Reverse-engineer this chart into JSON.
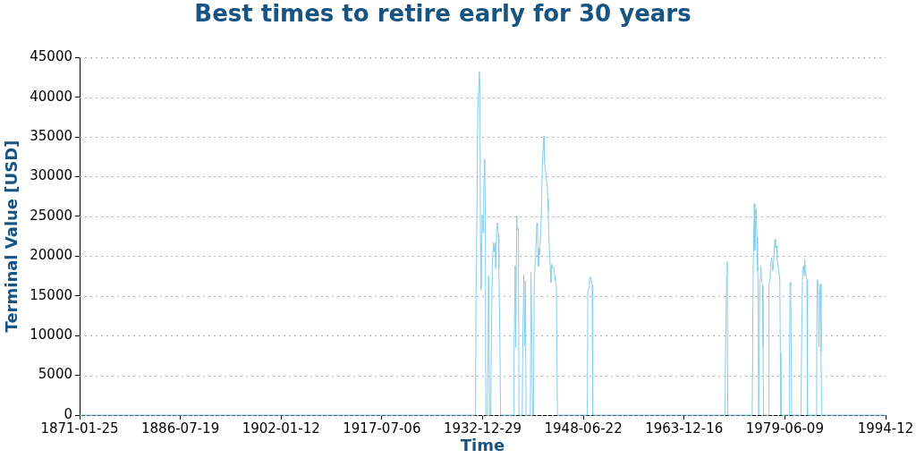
{
  "chart_data": {
    "type": "line",
    "title": "Best times to retire early for 30 years",
    "xlabel": "Time",
    "ylabel": "Terminal Value [USD]",
    "x": [
      "1871-02",
      "1931-12",
      "1932-01",
      "1932-02",
      "1932-04",
      "1932-07",
      "1932-08",
      "1932-09",
      "1932-10",
      "1932-11",
      "1932-12",
      "1933-02",
      "1933-03",
      "1933-05",
      "1933-06",
      "1933-07",
      "1933-10",
      "1933-11",
      "1933-12",
      "1934-02",
      "1934-04",
      "1934-05",
      "1934-07",
      "1934-09",
      "1934-10",
      "1934-12",
      "1935-01",
      "1935-03",
      "1935-04",
      "1935-06",
      "1935-07",
      "1935-09",
      "1935-10",
      "1937-10",
      "1937-11",
      "1938-01",
      "1938-02",
      "1938-04",
      "1938-05",
      "1938-07",
      "1938-08",
      "1939-02",
      "1939-03",
      "1939-05",
      "1939-07",
      "1939-08",
      "1939-09",
      "1940-05",
      "1940-06",
      "1940-08",
      "1940-09",
      "1940-11",
      "1940-12",
      "1941-02",
      "1941-03",
      "1941-05",
      "1941-06",
      "1941-07",
      "1941-08",
      "1941-09",
      "1941-10",
      "1941-12",
      "1942-02",
      "1942-03",
      "1942-05",
      "1942-06",
      "1942-07",
      "1942-09",
      "1942-10",
      "1942-12",
      "1943-01",
      "1943-02",
      "1943-03",
      "1943-05",
      "1943-06",
      "1943-07",
      "1943-08",
      "1943-10",
      "1943-12",
      "1944-02",
      "1944-03",
      "1944-05",
      "1944-06",
      "1944-07",
      "1949-02",
      "1949-03",
      "1949-05",
      "1949-06",
      "1949-08",
      "1949-10",
      "1949-11",
      "1949-12",
      "1970-04",
      "1970-05",
      "1970-07",
      "1970-08",
      "1970-09",
      "1974-06",
      "1974-07",
      "1974-08",
      "1974-10",
      "1974-11",
      "1974-12",
      "1975-01",
      "1975-03",
      "1975-04",
      "1975-05",
      "1975-06",
      "1975-07",
      "1975-08",
      "1975-09",
      "1975-10",
      "1975-11",
      "1976-01",
      "1976-02",
      "1976-03",
      "1976-12",
      "1977-01",
      "1977-03",
      "1977-04",
      "1977-06",
      "1977-08",
      "1977-09",
      "1977-10",
      "1977-12",
      "1978-01",
      "1978-03",
      "1978-04",
      "1978-05",
      "1978-07",
      "1978-09",
      "1978-10",
      "1978-11",
      "1980-02",
      "1980-03",
      "1980-04",
      "1980-05",
      "1980-06",
      "1980-07",
      "1981-12",
      "1982-01",
      "1982-03",
      "1982-05",
      "1982-06",
      "1982-07",
      "1982-08",
      "1982-10",
      "1982-11",
      "1982-12",
      "1984-04",
      "1984-05",
      "1984-06",
      "1984-08",
      "1984-09",
      "1984-11",
      "1984-12",
      "1985-01",
      "1985-02",
      "1994-11"
    ],
    "series": [
      {
        "color": "#87ceeb",
        "values": [
          0,
          0,
          19400,
          22000,
          38000,
          43200,
          41500,
          21500,
          15800,
          23200,
          25200,
          22900,
          28200,
          32200,
          24600,
          0,
          0,
          8800,
          17500,
          0,
          0,
          8400,
          19200,
          21700,
          20500,
          21700,
          18400,
          23600,
          24200,
          22700,
          18400,
          8300,
          0,
          0,
          8300,
          18800,
          8500,
          25100,
          23300,
          23500,
          0,
          0,
          8500,
          17700,
          8700,
          16900,
          0,
          0,
          18000,
          9000,
          0,
          0,
          16400,
          19700,
          20300,
          24200,
          23600,
          21000,
          18700,
          20900,
          20200,
          22700,
          27400,
          31200,
          34000,
          35100,
          32000,
          30700,
          29800,
          29000,
          27200,
          25600,
          22600,
          19600,
          18300,
          16700,
          19000,
          18500,
          18600,
          17500,
          17000,
          16300,
          7800,
          0,
          0,
          15600,
          16000,
          17000,
          17400,
          16600,
          16400,
          0,
          0,
          8000,
          17600,
          19300,
          0,
          0,
          8400,
          18900,
          26600,
          20700,
          23500,
          25900,
          22400,
          18100,
          16900,
          0,
          0,
          16900,
          17000,
          18700,
          17300,
          16300,
          8600,
          0,
          0,
          16300,
          17000,
          19000,
          19800,
          18100,
          18800,
          19800,
          22100,
          21100,
          21300,
          19800,
          19200,
          18300,
          17000,
          7800,
          0,
          0,
          8300,
          16700,
          16200,
          8300,
          0,
          0,
          7800,
          18300,
          18800,
          17500,
          19600,
          18300,
          17300,
          17000,
          0,
          0,
          8600,
          17000,
          16900,
          8600,
          16000,
          16500,
          8000,
          0,
          0
        ]
      }
    ],
    "xlim": [
      "1871-01-25",
      "1994-12-02"
    ],
    "xticks": [
      "1871-01-25",
      "1886-07-19",
      "1902-01-12",
      "1917-07-06",
      "1932-12-29",
      "1948-06-22",
      "1963-12-16",
      "1979-06-09",
      {
        "value": "1994-12-02",
        "label": "1994-12"
      }
    ],
    "ylim": [
      0,
      45000
    ],
    "yticks": [
      0,
      5000,
      10000,
      15000,
      20000,
      25000,
      30000,
      35000,
      40000,
      45000
    ],
    "grid": "y"
  }
}
